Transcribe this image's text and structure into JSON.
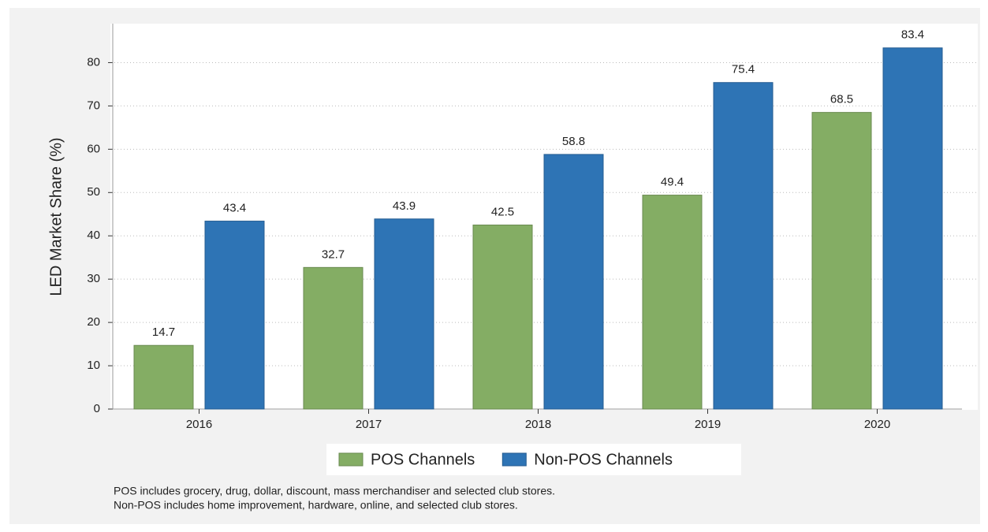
{
  "chart_data": {
    "type": "bar",
    "y_label": "LED Market Share (%)",
    "categories": [
      "2016",
      "2017",
      "2018",
      "2019",
      "2020"
    ],
    "series": [
      {
        "name": "POS Channels",
        "color": "#84ad64",
        "values": [
          14.7,
          32.7,
          42.5,
          49.4,
          68.5
        ]
      },
      {
        "name": "Non-POS Channels",
        "color": "#2e74b5",
        "values": [
          43.4,
          43.9,
          58.8,
          75.4,
          83.4
        ]
      }
    ],
    "ylim": [
      0,
      89
    ],
    "yticks": [
      0,
      10,
      20,
      30,
      40,
      50,
      60,
      70,
      80
    ],
    "grid": true,
    "notes": [
      "POS includes grocery, drug, dollar, discount, mass merchandiser and selected club stores.",
      "Non-POS includes home improvement, hardware, online, and selected club stores."
    ]
  }
}
